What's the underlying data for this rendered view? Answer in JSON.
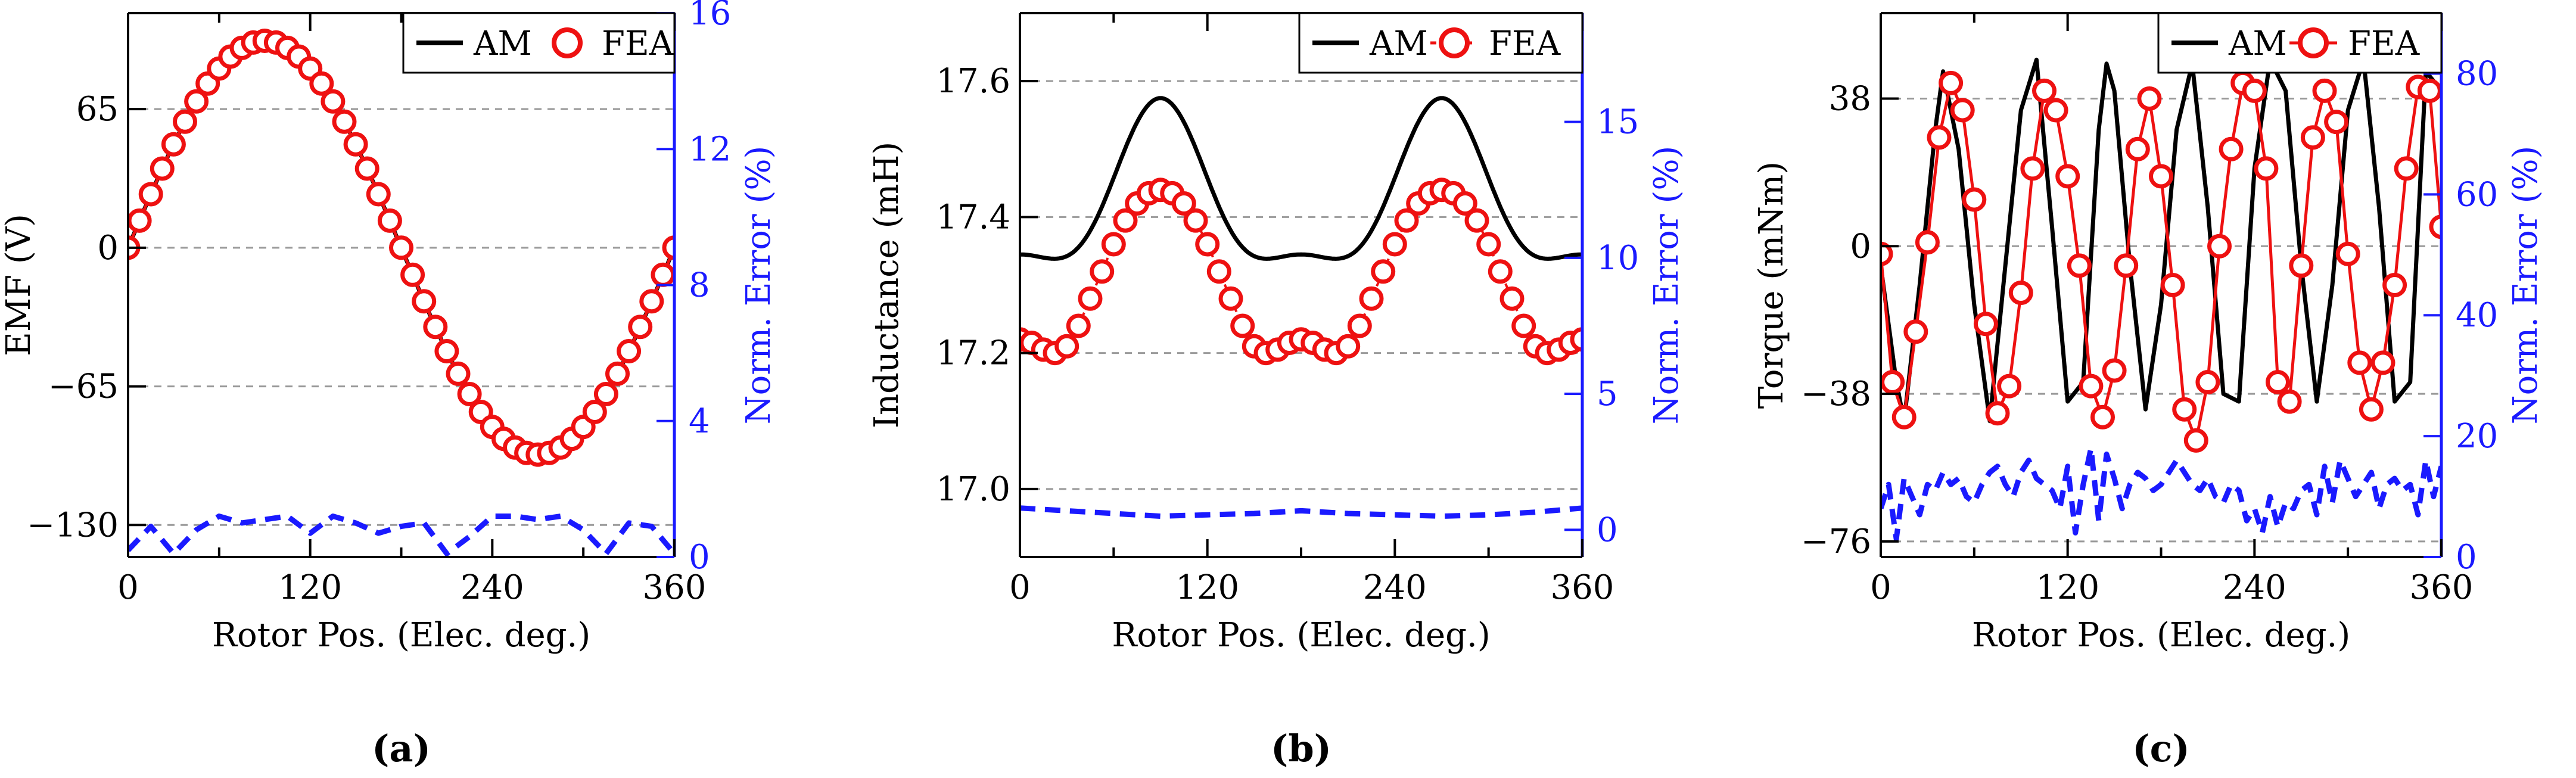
{
  "figure": {
    "xlabel": "Rotor Pos. (Elec. deg.)",
    "right_ylabel": "Norm. Error (%)",
    "legend_am": "AM",
    "legend_fea": "FEA",
    "panel_labels": [
      "(a)",
      "(b)",
      "(c)"
    ]
  },
  "colors": {
    "am": "#000000",
    "fea": "#ee1111",
    "error": "#1a1aff",
    "grid": "#999999",
    "right_axis": "#1a1aff"
  },
  "chart_data": [
    {
      "type": "line",
      "title": "",
      "panel": "(a)",
      "xlabel": "Rotor Pos. (Elec. deg.)",
      "ylabel": "EMF (V)",
      "y2label": "Norm. Error (%)",
      "xlim": [
        0,
        360
      ],
      "ylim": [
        -145,
        110
      ],
      "y2lim": [
        0,
        16
      ],
      "xticks": [
        0,
        120,
        240,
        360
      ],
      "yticks": [
        -130,
        -65,
        0,
        65
      ],
      "y2ticks": [
        0,
        4,
        8,
        12,
        16
      ],
      "grid_y": [
        -130,
        -65,
        0,
        65
      ],
      "fea_dashed_line": false,
      "legend": [
        "AM",
        "FEA"
      ],
      "legend_position": "top-right",
      "am_model": {
        "kind": "sine",
        "amplitude": 97,
        "phase_deg": 0,
        "offset": 0
      },
      "fea_x": [
        0,
        7.5,
        15,
        22.5,
        30,
        37.5,
        45,
        52.5,
        60,
        67.5,
        75,
        82.5,
        90,
        97.5,
        105,
        112.5,
        120,
        127.5,
        135,
        142.5,
        150,
        157.5,
        165,
        172.5,
        180,
        187.5,
        195,
        202.5,
        210,
        217.5,
        225,
        232.5,
        240,
        247.5,
        255,
        262.5,
        270,
        277.5,
        285,
        292.5,
        300,
        307.5,
        315,
        322.5,
        330,
        337.5,
        345,
        352.5,
        360
      ],
      "fea_y": [
        0,
        12.7,
        25.1,
        37.1,
        48.5,
        59.1,
        68.6,
        77,
        84,
        89.6,
        93.7,
        96.2,
        97,
        96.2,
        93.7,
        89.6,
        84,
        77,
        68.6,
        59.1,
        48.5,
        37.1,
        25.1,
        12.7,
        0,
        -12.7,
        -25.1,
        -37.1,
        -48.5,
        -59.1,
        -68.6,
        -77,
        -84,
        -89.6,
        -93.7,
        -96.2,
        -97,
        -96.2,
        -93.7,
        -89.6,
        -84,
        -77,
        -68.6,
        -59.1,
        -48.5,
        -37.1,
        -25.1,
        -12.7,
        0
      ],
      "err_x": [
        0,
        15,
        30,
        45,
        60,
        75,
        90,
        105,
        120,
        135,
        150,
        165,
        180,
        195,
        210,
        225,
        240,
        255,
        270,
        285,
        300,
        315,
        330,
        345,
        360
      ],
      "err_y": [
        0.2,
        0.9,
        0.1,
        0.8,
        1.2,
        1.0,
        1.1,
        1.2,
        0.7,
        1.2,
        1.0,
        0.7,
        0.9,
        1.0,
        0.1,
        0.6,
        1.2,
        1.2,
        1.1,
        1.2,
        0.8,
        0.1,
        1.0,
        0.9,
        0.1
      ]
    },
    {
      "type": "line",
      "title": "",
      "panel": "(b)",
      "xlabel": "Rotor Pos. (Elec. deg.)",
      "ylabel": "Inductance (mH)",
      "y2label": "Norm. Error (%)",
      "xlim": [
        0,
        360
      ],
      "ylim": [
        16.9,
        17.7
      ],
      "y2lim": [
        -1,
        19
      ],
      "xticks": [
        0,
        120,
        240,
        360
      ],
      "yticks": [
        17.0,
        17.2,
        17.4,
        17.6
      ],
      "ytick_labels": [
        "17.0",
        "17.2",
        "17.4",
        "17.6"
      ],
      "y2ticks": [
        0,
        5,
        10,
        15
      ],
      "grid_y": [
        17.0,
        17.2,
        17.4,
        17.6
      ],
      "fea_dashed_line": true,
      "legend": [
        "AM",
        "FEA"
      ],
      "legend_position": "top-right",
      "am_model": {
        "kind": "inductance",
        "base": 17.42,
        "a2": -0.115,
        "a4": 0.04
      },
      "fea_x": [
        0,
        7.5,
        15,
        22.5,
        30,
        37.5,
        45,
        52.5,
        60,
        67.5,
        75,
        82.5,
        90,
        97.5,
        105,
        112.5,
        120,
        127.5,
        135,
        142.5,
        150,
        157.5,
        165,
        172.5,
        180,
        187.5,
        195,
        202.5,
        210,
        217.5,
        225,
        232.5,
        240,
        247.5,
        255,
        262.5,
        270,
        277.5,
        285,
        292.5,
        300,
        307.5,
        315,
        322.5,
        330,
        337.5,
        345,
        352.5,
        360
      ],
      "fea_y": [
        17.22,
        17.215,
        17.205,
        17.2,
        17.21,
        17.24,
        17.28,
        17.32,
        17.36,
        17.395,
        17.42,
        17.435,
        17.44,
        17.435,
        17.42,
        17.395,
        17.36,
        17.32,
        17.28,
        17.24,
        17.21,
        17.2,
        17.205,
        17.215,
        17.22,
        17.215,
        17.205,
        17.2,
        17.21,
        17.24,
        17.28,
        17.32,
        17.36,
        17.395,
        17.42,
        17.435,
        17.44,
        17.435,
        17.42,
        17.395,
        17.36,
        17.32,
        17.28,
        17.24,
        17.21,
        17.2,
        17.205,
        17.215,
        17.22
      ],
      "err_x": [
        0,
        30,
        60,
        90,
        120,
        150,
        180,
        210,
        240,
        270,
        300,
        330,
        360
      ],
      "err_y": [
        0.8,
        0.7,
        0.6,
        0.5,
        0.55,
        0.6,
        0.7,
        0.6,
        0.55,
        0.5,
        0.55,
        0.65,
        0.8
      ]
    },
    {
      "type": "line",
      "title": "",
      "panel": "(c)",
      "xlabel": "Rotor Pos. (Elec. deg.)",
      "ylabel": "Torque (mNm)",
      "y2label": "Norm. Error (%)",
      "xlim": [
        0,
        360
      ],
      "ylim": [
        -80,
        60
      ],
      "y2lim": [
        0,
        90
      ],
      "xticks": [
        0,
        120,
        240,
        360
      ],
      "yticks": [
        -76,
        -38,
        0,
        38
      ],
      "y2ticks": [
        0,
        20,
        40,
        60,
        80
      ],
      "grid_y": [
        -76,
        -38,
        0,
        38
      ],
      "fea_dashed_line": false,
      "legend": [
        "AM",
        "FEA"
      ],
      "legend_position": "top-right",
      "am_x": [
        0,
        10,
        15,
        25,
        35,
        40,
        50,
        60,
        70,
        80,
        90,
        100,
        110,
        120,
        130,
        140,
        145,
        150,
        160,
        170,
        180,
        190,
        200,
        210,
        220,
        230,
        240,
        250,
        260,
        270,
        280,
        290,
        300,
        310,
        320,
        330,
        340,
        350,
        360
      ],
      "am_y": [
        -5,
        -35,
        -45,
        -10,
        30,
        45,
        25,
        -15,
        -45,
        -5,
        35,
        48,
        5,
        -40,
        -35,
        30,
        47,
        40,
        -5,
        -42,
        -15,
        30,
        47,
        10,
        -38,
        -40,
        20,
        48,
        40,
        -5,
        -40,
        -10,
        35,
        48,
        10,
        -40,
        -35,
        45,
        40
      ],
      "fea_x": [
        0,
        7.5,
        15,
        22.5,
        30,
        37.5,
        45,
        52.5,
        60,
        67.5,
        75,
        82.5,
        90,
        97.5,
        105,
        112.5,
        120,
        127.5,
        135,
        142.5,
        150,
        157.5,
        165,
        172.5,
        180,
        187.5,
        195,
        202.5,
        210,
        217.5,
        225,
        232.5,
        240,
        247.5,
        255,
        262.5,
        270,
        277.5,
        285,
        292.5,
        300,
        307.5,
        315,
        322.5,
        330,
        337.5,
        345,
        352.5,
        360
      ],
      "fea_y": [
        -2,
        -35,
        -44,
        -22,
        1,
        28,
        42,
        35,
        12,
        -20,
        -43,
        -36,
        -12,
        20,
        40,
        35,
        18,
        -5,
        -36,
        -44,
        -32,
        -5,
        25,
        38,
        18,
        -10,
        -42,
        -50,
        -35,
        0,
        25,
        42,
        40,
        20,
        -35,
        -40,
        -5,
        28,
        40,
        32,
        -2,
        -30,
        -42,
        -30,
        -10,
        20,
        41,
        40,
        5
      ],
      "err_x": [
        0,
        5,
        10,
        15,
        20,
        25,
        30,
        35,
        40,
        45,
        50,
        55,
        60,
        65,
        70,
        75,
        80,
        85,
        90,
        95,
        100,
        105,
        110,
        115,
        120,
        125,
        130,
        135,
        140,
        145,
        150,
        155,
        160,
        165,
        170,
        175,
        180,
        185,
        190,
        195,
        200,
        205,
        210,
        215,
        220,
        225,
        230,
        235,
        240,
        245,
        250,
        255,
        260,
        265,
        270,
        275,
        280,
        285,
        290,
        295,
        300,
        305,
        310,
        315,
        320,
        325,
        330,
        335,
        340,
        345,
        350,
        355,
        360
      ],
      "err_y": [
        8,
        12,
        3,
        13,
        10,
        7,
        12,
        11,
        14,
        12,
        13,
        10,
        9,
        12,
        14,
        15,
        12,
        10,
        14,
        16,
        13,
        12,
        11,
        8,
        15,
        4,
        12,
        18,
        6,
        17,
        13,
        8,
        12,
        14,
        13,
        11,
        12,
        14,
        16,
        14,
        12,
        11,
        13,
        10,
        9,
        12,
        11,
        6,
        8,
        4,
        10,
        5,
        9,
        8,
        11,
        12,
        7,
        15,
        9,
        16,
        13,
        10,
        12,
        14,
        8,
        12,
        13,
        11,
        12,
        7,
        16,
        10,
        15
      ]
    }
  ]
}
